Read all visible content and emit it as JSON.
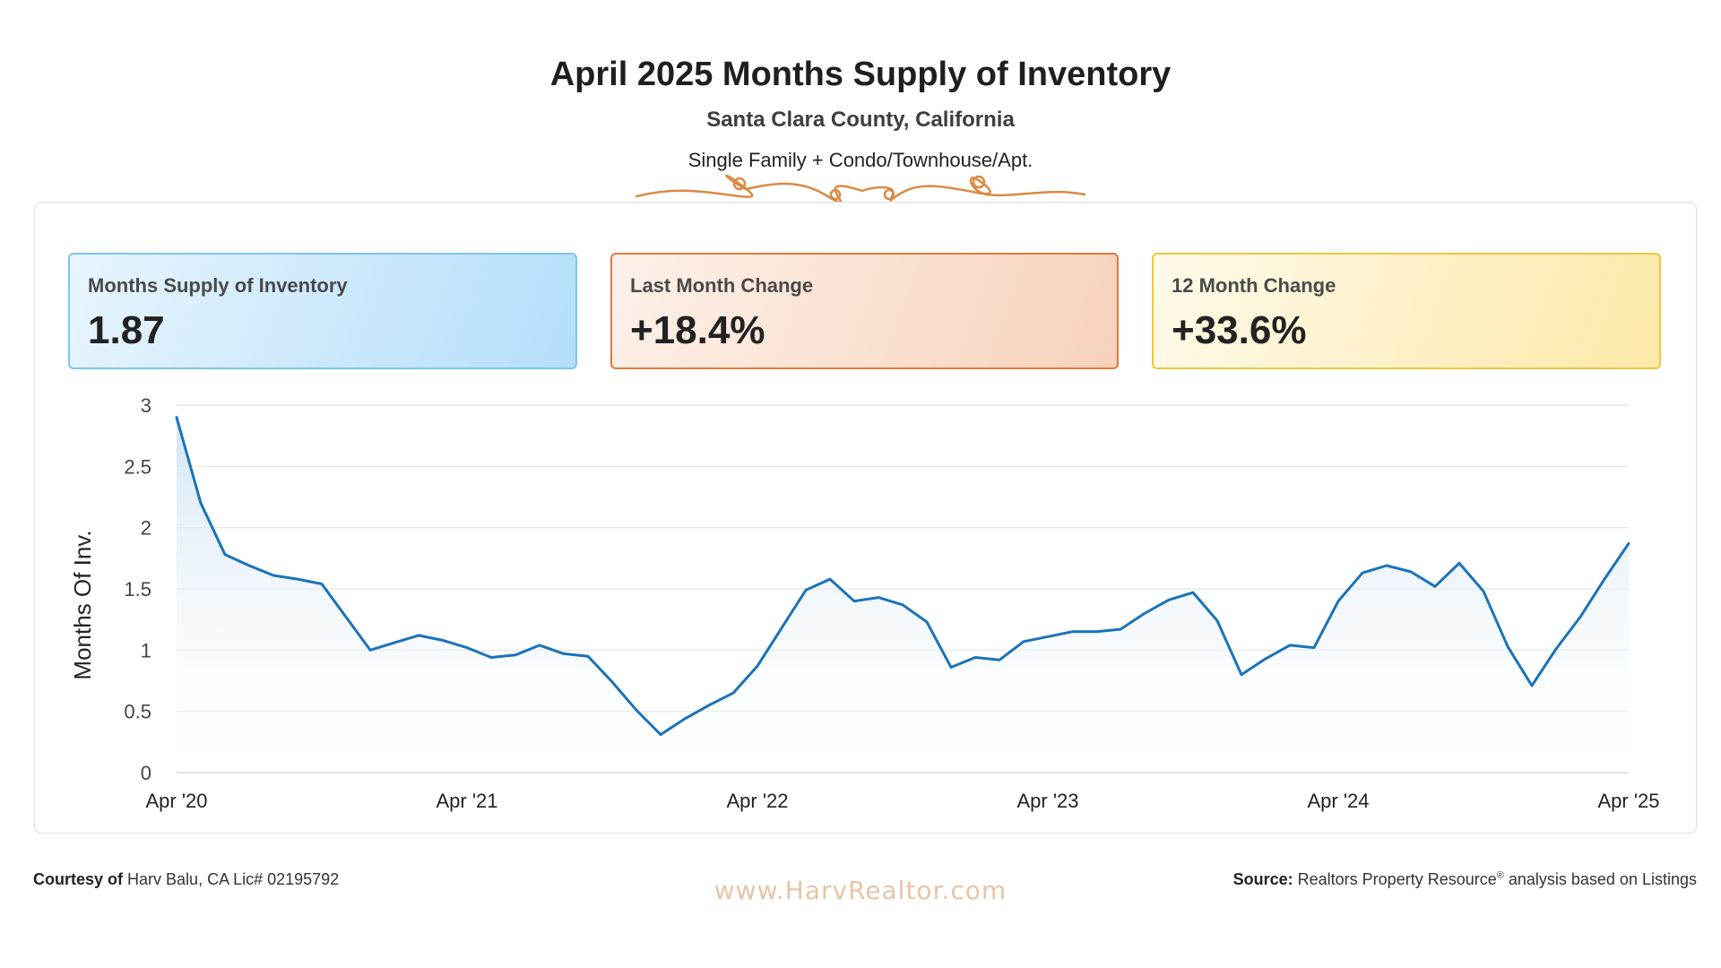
{
  "header": {
    "title": "April 2025 Months Supply of Inventory",
    "subtitle": "Santa Clara County, California",
    "property_types": "Single Family + Condo/Townhouse/Apt."
  },
  "cards": [
    {
      "label": "Months Supply of Inventory",
      "value": "1.87"
    },
    {
      "label": "Last Month Change",
      "value": "+18.4%"
    },
    {
      "label": "12 Month Change",
      "value": "+33.6%"
    }
  ],
  "footer": {
    "courtesy_label": "Courtesy of",
    "courtesy_text": "Harv Balu, CA Lic# 02195792",
    "website": "www.HarvRealtor.com",
    "source_label": "Source:",
    "source_text_before": "Realtors Property Resource",
    "source_mark": "®",
    "source_text_after": "analysis based on Listings"
  },
  "colors": {
    "line": "#1a73b8",
    "card1_border": "#7cc4f0",
    "card2_border": "#e07a3a",
    "card3_border": "#f2c53c",
    "flourish": "#d98a45"
  },
  "chart_data": {
    "type": "area",
    "ylabel": "Months Of Inv.",
    "ylim": [
      0,
      3
    ],
    "yticks": [
      0,
      0.5,
      1,
      1.5,
      2,
      2.5,
      3
    ],
    "xtick_labels": [
      "Apr '20",
      "Apr '21",
      "Apr '22",
      "Apr '23",
      "Apr '24",
      "Apr '25"
    ],
    "grid": true,
    "series": [
      {
        "values": [
          2.9,
          2.2,
          1.78,
          1.69,
          1.61,
          1.58,
          1.54,
          1.27,
          1.0,
          1.06,
          1.12,
          1.08,
          1.02,
          0.94,
          0.96,
          1.04,
          0.97,
          0.95,
          0.74,
          0.51,
          0.31,
          0.44,
          0.55,
          0.65,
          0.87,
          1.18,
          1.49,
          1.58,
          1.4,
          1.43,
          1.37,
          1.23,
          0.86,
          0.94,
          0.92,
          1.07,
          1.11,
          1.15,
          1.15,
          1.17,
          1.3,
          1.41,
          1.47,
          1.24,
          0.8,
          0.93,
          1.04,
          1.02,
          1.4,
          1.63,
          1.69,
          1.64,
          1.52,
          1.71,
          1.48,
          1.03,
          0.71,
          1.01,
          1.27,
          1.58,
          1.87
        ]
      }
    ]
  }
}
